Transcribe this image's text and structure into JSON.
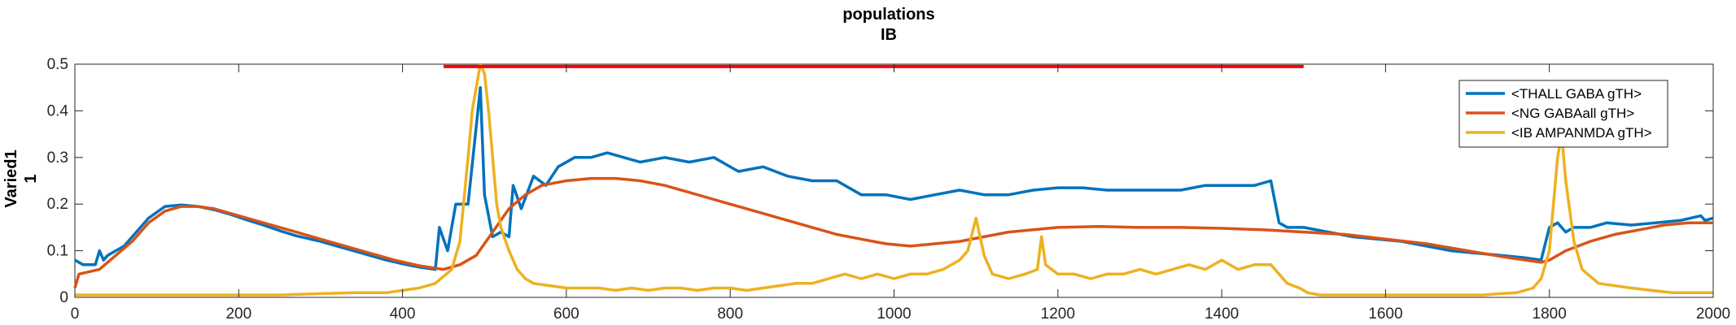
{
  "chart_data": {
    "type": "line",
    "title": "populations",
    "subtitle": "IB",
    "xlabel": "",
    "ylabel": "Varied1",
    "ylabel2": "1",
    "xlim": [
      0,
      2000
    ],
    "ylim": [
      0,
      0.5
    ],
    "xticks": [
      0,
      200,
      400,
      600,
      800,
      1000,
      1200,
      1400,
      1600,
      1800,
      2000
    ],
    "yticks": [
      0,
      0.1,
      0.2,
      0.3,
      0.4,
      0.5
    ],
    "xtick_labels": [
      "0",
      "200",
      "400",
      "600",
      "800",
      "1000",
      "1200",
      "1400",
      "1600",
      "1800",
      "2000"
    ],
    "ytick_labels": [
      "0",
      "0.1",
      "0.2",
      "0.3",
      "0.4",
      "0.5"
    ],
    "grid": false,
    "legend_position": "top-right",
    "stimulus_bar": {
      "x_start": 450,
      "x_end": 1500,
      "y": 0.495,
      "color": "#ff0000"
    },
    "series": [
      {
        "name": "<THALL GABA gTH>",
        "color": "#0072bd",
        "x": [
          0,
          10,
          25,
          30,
          35,
          40,
          50,
          60,
          70,
          90,
          110,
          130,
          150,
          170,
          190,
          210,
          230,
          250,
          270,
          300,
          320,
          340,
          360,
          380,
          400,
          420,
          440,
          445,
          455,
          465,
          480,
          495,
          500,
          510,
          520,
          530,
          535,
          545,
          560,
          575,
          590,
          610,
          630,
          650,
          670,
          690,
          720,
          750,
          780,
          810,
          840,
          870,
          900,
          930,
          960,
          990,
          1020,
          1050,
          1080,
          1110,
          1140,
          1170,
          1200,
          1230,
          1260,
          1290,
          1320,
          1350,
          1380,
          1410,
          1440,
          1460,
          1470,
          1480,
          1500,
          1530,
          1560,
          1590,
          1620,
          1650,
          1680,
          1710,
          1740,
          1770,
          1790,
          1800,
          1810,
          1820,
          1830,
          1850,
          1870,
          1900,
          1930,
          1960,
          1985,
          1990,
          2000
        ],
        "y": [
          0.08,
          0.07,
          0.07,
          0.1,
          0.08,
          0.09,
          0.1,
          0.11,
          0.13,
          0.17,
          0.195,
          0.198,
          0.195,
          0.188,
          0.178,
          0.166,
          0.155,
          0.143,
          0.132,
          0.12,
          0.11,
          0.1,
          0.09,
          0.08,
          0.072,
          0.065,
          0.06,
          0.15,
          0.1,
          0.2,
          0.2,
          0.45,
          0.22,
          0.13,
          0.14,
          0.13,
          0.24,
          0.19,
          0.26,
          0.24,
          0.28,
          0.3,
          0.3,
          0.31,
          0.3,
          0.29,
          0.3,
          0.29,
          0.3,
          0.27,
          0.28,
          0.26,
          0.25,
          0.25,
          0.22,
          0.22,
          0.21,
          0.22,
          0.23,
          0.22,
          0.22,
          0.23,
          0.235,
          0.235,
          0.23,
          0.23,
          0.23,
          0.23,
          0.24,
          0.24,
          0.24,
          0.25,
          0.16,
          0.15,
          0.15,
          0.14,
          0.13,
          0.125,
          0.12,
          0.11,
          0.1,
          0.095,
          0.09,
          0.085,
          0.08,
          0.15,
          0.16,
          0.14,
          0.15,
          0.15,
          0.16,
          0.155,
          0.16,
          0.165,
          0.175,
          0.165,
          0.17
        ]
      },
      {
        "name": "<NG GABAall gTH>",
        "color": "#d95319",
        "x": [
          0,
          5,
          30,
          50,
          70,
          90,
          110,
          130,
          150,
          170,
          190,
          210,
          240,
          270,
          300,
          330,
          360,
          390,
          420,
          450,
          470,
          490,
          510,
          530,
          550,
          570,
          600,
          630,
          660,
          690,
          720,
          750,
          780,
          810,
          840,
          870,
          900,
          930,
          960,
          990,
          1020,
          1050,
          1080,
          1110,
          1140,
          1170,
          1200,
          1250,
          1300,
          1350,
          1400,
          1450,
          1500,
          1550,
          1600,
          1650,
          1700,
          1750,
          1790,
          1800,
          1820,
          1850,
          1880,
          1910,
          1940,
          1970,
          2000
        ],
        "y": [
          0.02,
          0.05,
          0.06,
          0.09,
          0.12,
          0.16,
          0.185,
          0.195,
          0.195,
          0.19,
          0.18,
          0.17,
          0.155,
          0.14,
          0.125,
          0.11,
          0.095,
          0.08,
          0.068,
          0.06,
          0.07,
          0.09,
          0.14,
          0.19,
          0.22,
          0.24,
          0.25,
          0.255,
          0.255,
          0.25,
          0.24,
          0.225,
          0.21,
          0.195,
          0.18,
          0.165,
          0.15,
          0.135,
          0.125,
          0.115,
          0.11,
          0.115,
          0.12,
          0.13,
          0.14,
          0.145,
          0.15,
          0.152,
          0.15,
          0.15,
          0.148,
          0.145,
          0.14,
          0.135,
          0.125,
          0.115,
          0.1,
          0.085,
          0.075,
          0.08,
          0.1,
          0.12,
          0.135,
          0.145,
          0.155,
          0.16,
          0.16
        ]
      },
      {
        "name": "<IB AMPANMDA gTH>",
        "color": "#edb120",
        "x": [
          0,
          50,
          100,
          150,
          200,
          250,
          300,
          340,
          380,
          400,
          420,
          440,
          460,
          470,
          480,
          485,
          490,
          495,
          500,
          505,
          510,
          515,
          520,
          530,
          540,
          550,
          560,
          580,
          600,
          620,
          640,
          660,
          680,
          700,
          720,
          740,
          760,
          780,
          800,
          820,
          840,
          860,
          880,
          900,
          920,
          940,
          960,
          980,
          1000,
          1020,
          1040,
          1060,
          1080,
          1090,
          1100,
          1110,
          1120,
          1140,
          1160,
          1175,
          1180,
          1185,
          1200,
          1220,
          1240,
          1260,
          1280,
          1300,
          1320,
          1340,
          1360,
          1380,
          1400,
          1420,
          1440,
          1460,
          1480,
          1495,
          1505,
          1520,
          1560,
          1600,
          1640,
          1680,
          1720,
          1740,
          1760,
          1780,
          1790,
          1800,
          1805,
          1810,
          1815,
          1820,
          1830,
          1840,
          1860,
          1900,
          1950,
          2000
        ],
        "y": [
          0.005,
          0.005,
          0.005,
          0.005,
          0.005,
          0.005,
          0.008,
          0.01,
          0.01,
          0.015,
          0.02,
          0.03,
          0.06,
          0.12,
          0.3,
          0.4,
          0.45,
          0.5,
          0.48,
          0.4,
          0.3,
          0.2,
          0.15,
          0.1,
          0.06,
          0.04,
          0.03,
          0.025,
          0.02,
          0.02,
          0.02,
          0.015,
          0.02,
          0.015,
          0.02,
          0.02,
          0.015,
          0.02,
          0.02,
          0.015,
          0.02,
          0.025,
          0.03,
          0.03,
          0.04,
          0.05,
          0.04,
          0.05,
          0.04,
          0.05,
          0.05,
          0.06,
          0.08,
          0.1,
          0.17,
          0.09,
          0.05,
          0.04,
          0.05,
          0.06,
          0.13,
          0.07,
          0.05,
          0.05,
          0.04,
          0.05,
          0.05,
          0.06,
          0.05,
          0.06,
          0.07,
          0.06,
          0.08,
          0.06,
          0.07,
          0.07,
          0.03,
          0.02,
          0.01,
          0.005,
          0.005,
          0.005,
          0.005,
          0.005,
          0.005,
          0.008,
          0.01,
          0.02,
          0.04,
          0.1,
          0.2,
          0.3,
          0.35,
          0.25,
          0.12,
          0.06,
          0.03,
          0.02,
          0.01,
          0.01
        ]
      }
    ]
  }
}
